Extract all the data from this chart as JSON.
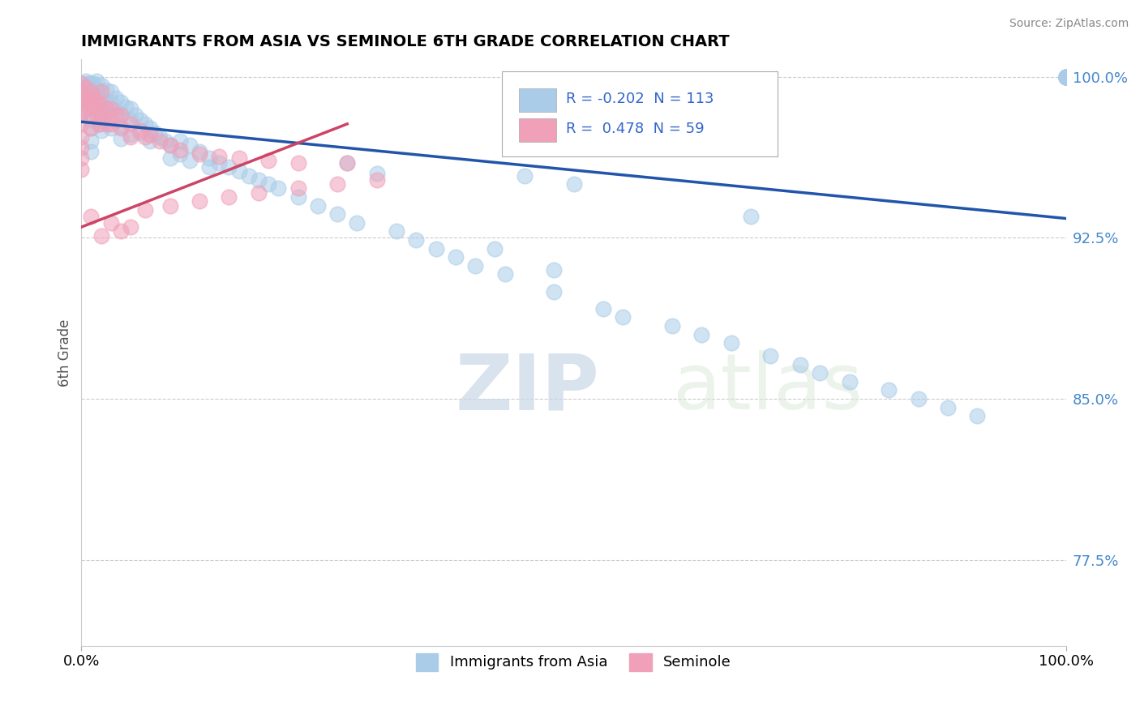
{
  "title": "IMMIGRANTS FROM ASIA VS SEMINOLE 6TH GRADE CORRELATION CHART",
  "source_text": "Source: ZipAtlas.com",
  "ylabel": "6th Grade",
  "watermark_zip": "ZIP",
  "watermark_atlas": "atlas",
  "xlim": [
    0.0,
    1.0
  ],
  "ylim": [
    0.735,
    1.008
  ],
  "yticks": [
    0.775,
    0.85,
    0.925,
    1.0
  ],
  "ytick_labels": [
    "77.5%",
    "85.0%",
    "92.5%",
    "100.0%"
  ],
  "xticks": [
    0.0,
    1.0
  ],
  "xtick_labels": [
    "0.0%",
    "100.0%"
  ],
  "legend_labels": [
    "Immigrants from Asia",
    "Seminole"
  ],
  "blue_scatter_color": "#aacce8",
  "pink_scatter_color": "#f0a0b8",
  "blue_line_color": "#2255aa",
  "pink_line_color": "#cc4466",
  "blue_trend": [
    0.0,
    0.979,
    1.0,
    0.934
  ],
  "pink_trend": [
    0.0,
    0.93,
    0.27,
    0.978
  ],
  "entry1_color": "#aacce8",
  "entry2_color": "#f0a0b8",
  "entry1_R": "-0.202",
  "entry1_N": "113",
  "entry2_R": "0.478",
  "entry2_N": "59",
  "blue_scatter_x": [
    0.0,
    0.0,
    0.0,
    0.005,
    0.005,
    0.007,
    0.008,
    0.01,
    0.01,
    0.01,
    0.01,
    0.01,
    0.01,
    0.01,
    0.01,
    0.012,
    0.013,
    0.015,
    0.015,
    0.015,
    0.016,
    0.017,
    0.018,
    0.019,
    0.02,
    0.02,
    0.02,
    0.02,
    0.02,
    0.025,
    0.025,
    0.025,
    0.03,
    0.03,
    0.03,
    0.03,
    0.035,
    0.035,
    0.04,
    0.04,
    0.04,
    0.04,
    0.045,
    0.05,
    0.05,
    0.05,
    0.055,
    0.06,
    0.06,
    0.065,
    0.07,
    0.07,
    0.075,
    0.08,
    0.085,
    0.09,
    0.09,
    0.1,
    0.1,
    0.11,
    0.11,
    0.12,
    0.13,
    0.13,
    0.14,
    0.15,
    0.16,
    0.17,
    0.18,
    0.19,
    0.2,
    0.22,
    0.24,
    0.26,
    0.27,
    0.28,
    0.3,
    0.32,
    0.34,
    0.36,
    0.38,
    0.4,
    0.43,
    0.45,
    0.48,
    0.5,
    0.53,
    0.55,
    0.6,
    0.63,
    0.66,
    0.7,
    0.73,
    0.75,
    0.78,
    0.82,
    0.85,
    0.88,
    0.91,
    1.0,
    1.0,
    1.0,
    1.0,
    1.0,
    1.0,
    1.0,
    1.0,
    1.0,
    1.0,
    1.0,
    1.0,
    0.68,
    0.42,
    0.48
  ],
  "blue_scatter_y": [
    0.997,
    0.99,
    0.983,
    0.998,
    0.995,
    0.997,
    0.993,
    0.997,
    0.993,
    0.99,
    0.985,
    0.98,
    0.976,
    0.97,
    0.965,
    0.997,
    0.993,
    0.998,
    0.993,
    0.987,
    0.994,
    0.99,
    0.985,
    0.978,
    0.996,
    0.99,
    0.985,
    0.98,
    0.975,
    0.994,
    0.988,
    0.983,
    0.993,
    0.988,
    0.982,
    0.976,
    0.99,
    0.984,
    0.988,
    0.983,
    0.977,
    0.971,
    0.986,
    0.985,
    0.98,
    0.973,
    0.982,
    0.98,
    0.974,
    0.978,
    0.976,
    0.97,
    0.974,
    0.972,
    0.97,
    0.968,
    0.962,
    0.97,
    0.964,
    0.968,
    0.961,
    0.965,
    0.962,
    0.958,
    0.96,
    0.958,
    0.956,
    0.954,
    0.952,
    0.95,
    0.948,
    0.944,
    0.94,
    0.936,
    0.96,
    0.932,
    0.955,
    0.928,
    0.924,
    0.92,
    0.916,
    0.912,
    0.908,
    0.954,
    0.9,
    0.95,
    0.892,
    0.888,
    0.884,
    0.88,
    0.876,
    0.87,
    0.866,
    0.862,
    0.858,
    0.854,
    0.85,
    0.846,
    0.842,
    1.0,
    1.0,
    1.0,
    1.0,
    1.0,
    1.0,
    1.0,
    1.0,
    1.0,
    1.0,
    1.0,
    1.0,
    0.935,
    0.92,
    0.91
  ],
  "pink_scatter_x": [
    0.0,
    0.0,
    0.0,
    0.0,
    0.0,
    0.0,
    0.0,
    0.0,
    0.0,
    0.005,
    0.005,
    0.005,
    0.008,
    0.01,
    0.01,
    0.01,
    0.01,
    0.012,
    0.013,
    0.015,
    0.015,
    0.018,
    0.02,
    0.02,
    0.02,
    0.025,
    0.025,
    0.03,
    0.03,
    0.035,
    0.04,
    0.04,
    0.05,
    0.05,
    0.06,
    0.065,
    0.07,
    0.08,
    0.09,
    0.1,
    0.12,
    0.14,
    0.16,
    0.19,
    0.22,
    0.27,
    0.065,
    0.09,
    0.12,
    0.15,
    0.18,
    0.22,
    0.26,
    0.3,
    0.05,
    0.03,
    0.01,
    0.04,
    0.02
  ],
  "pink_scatter_y": [
    0.997,
    0.993,
    0.988,
    0.983,
    0.978,
    0.972,
    0.967,
    0.962,
    0.957,
    0.995,
    0.99,
    0.985,
    0.988,
    0.993,
    0.988,
    0.982,
    0.976,
    0.99,
    0.985,
    0.988,
    0.982,
    0.978,
    0.993,
    0.987,
    0.981,
    0.985,
    0.978,
    0.985,
    0.978,
    0.982,
    0.982,
    0.976,
    0.978,
    0.972,
    0.975,
    0.972,
    0.973,
    0.97,
    0.968,
    0.966,
    0.964,
    0.963,
    0.962,
    0.961,
    0.96,
    0.96,
    0.938,
    0.94,
    0.942,
    0.944,
    0.946,
    0.948,
    0.95,
    0.952,
    0.93,
    0.932,
    0.935,
    0.928,
    0.926
  ]
}
